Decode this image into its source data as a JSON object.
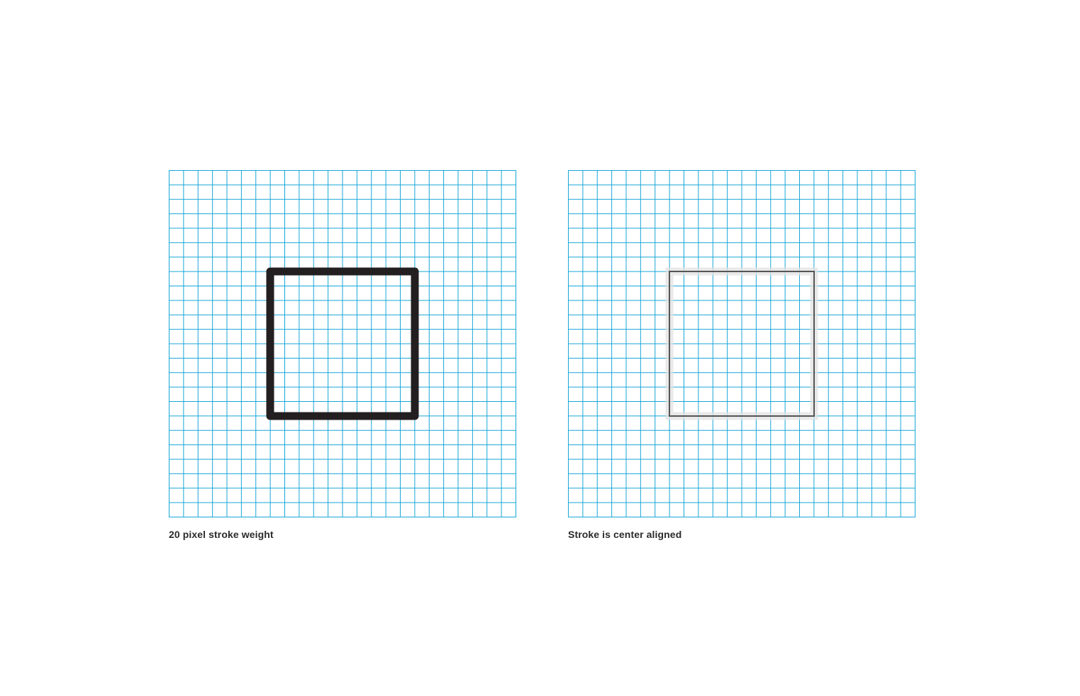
{
  "panels": [
    {
      "caption": "20 pixel stroke weight",
      "grid_color": "#19a6d8",
      "grid_cells": 24,
      "square": {
        "style": "thick-stroke",
        "stroke_color": "#231f20"
      }
    },
    {
      "caption": "Stroke is center aligned",
      "grid_color": "#19a6d8",
      "grid_cells": 24,
      "square": {
        "style": "center-aligned",
        "band_color": "#e2e2e2",
        "stroke_color": "#555555"
      }
    }
  ]
}
